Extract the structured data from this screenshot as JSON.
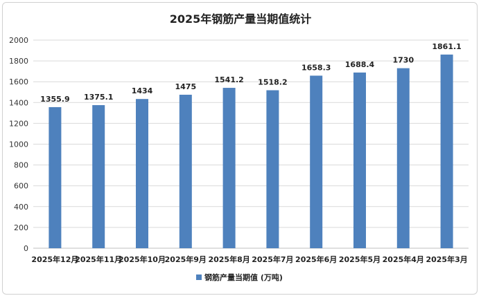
{
  "colors": {
    "bar": "#4e81bd",
    "gridline": "#d9d9d9",
    "axis": "#bfbfbf",
    "text": "#222222"
  },
  "chart_data": {
    "type": "bar",
    "title": "2025年钢筋产量当期值统计",
    "categories": [
      "2025年12月",
      "2025年11月",
      "2025年10月",
      "2025年9月",
      "2025年8月",
      "2025年7月",
      "2025年6月",
      "2025年5月",
      "2025年4月",
      "2025年3月"
    ],
    "series": [
      {
        "name": "钢筋产量当期值 (万吨)",
        "values": [
          1355.9,
          1375.1,
          1434,
          1475,
          1541.2,
          1518.2,
          1658.3,
          1688.4,
          1730,
          1861.1
        ]
      }
    ],
    "data_labels": [
      "1355.9",
      "1375.1",
      "1434",
      "1475",
      "1541.2",
      "1518.2",
      "1658.3",
      "1688.4",
      "1730",
      "1861.1"
    ],
    "yticks": [
      0,
      200,
      400,
      600,
      800,
      1000,
      1200,
      1400,
      1600,
      1800,
      2000
    ],
    "ylim": [
      0,
      2000
    ],
    "grid": true,
    "legend_position": "bottom"
  }
}
